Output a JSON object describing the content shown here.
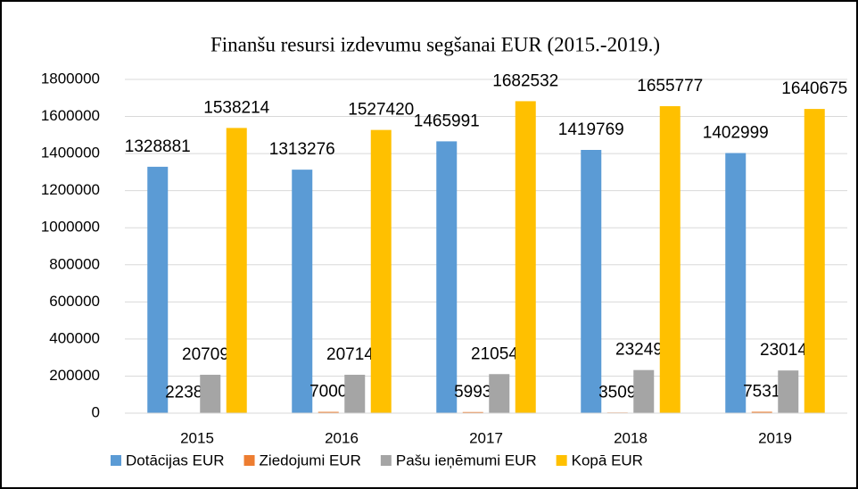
{
  "chart_data": {
    "type": "bar",
    "title": "Finanšu resursi izdevumu segšanai EUR  (2015.-2019.)",
    "categories": [
      "2015",
      "2016",
      "2017",
      "2018",
      "2019"
    ],
    "series": [
      {
        "name": "Dotācijas EUR",
        "color": "#5b9bd5",
        "values": [
          1328881,
          1313276,
          1465991,
          1419769,
          1402999
        ]
      },
      {
        "name": "Ziedojumi EUR",
        "color": "#ed7d31",
        "values": [
          2238,
          7000,
          5993,
          3509,
          7531
        ]
      },
      {
        "name": "Pašu ieņēmumi EUR",
        "color": "#a5a5a5",
        "values": [
          207095,
          207144,
          210548,
          232499,
          230145
        ]
      },
      {
        "name": "Kopā EUR",
        "color": "#ffc000",
        "values": [
          1538214,
          1527420,
          1682532,
          1655777,
          1640675
        ]
      }
    ],
    "ylim": [
      0,
      1800000
    ],
    "yticks": [
      0,
      200000,
      400000,
      600000,
      800000,
      1000000,
      1200000,
      1400000,
      1600000,
      1800000
    ],
    "grid": true,
    "legend": "bottom"
  }
}
